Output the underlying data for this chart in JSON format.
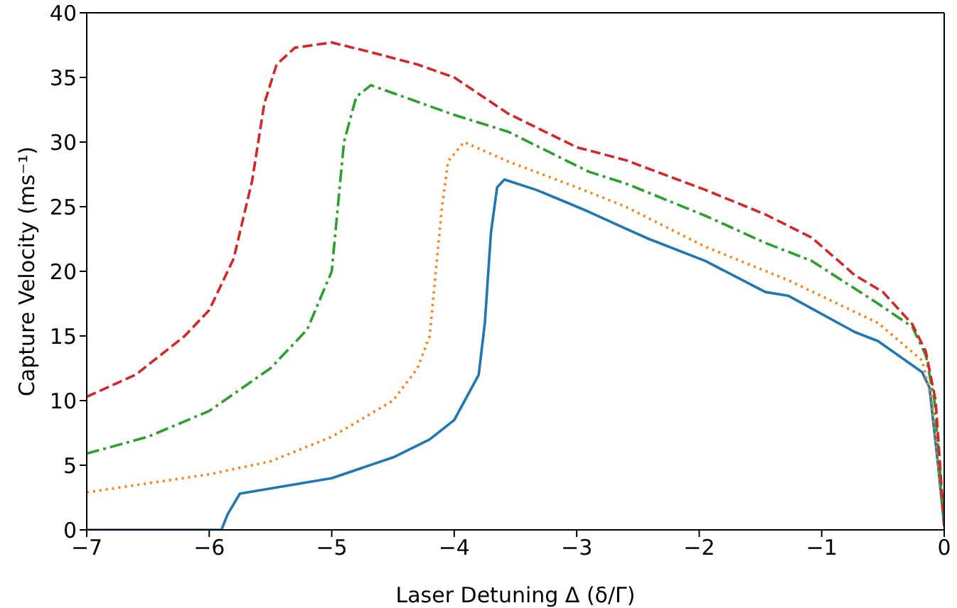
{
  "chart_data": {
    "type": "line",
    "xlabel": "Laser Detuning Δ (δ/Γ)",
    "ylabel": "Capture Velocity (ms⁻¹)",
    "xlim": [
      -7,
      0
    ],
    "ylim": [
      0,
      40
    ],
    "xticks": [
      {
        "value": -7,
        "label": "−7"
      },
      {
        "value": -6,
        "label": "−6"
      },
      {
        "value": -5,
        "label": "−5"
      },
      {
        "value": -4,
        "label": "−4"
      },
      {
        "value": -3,
        "label": "−3"
      },
      {
        "value": -2,
        "label": "−2"
      },
      {
        "value": -1,
        "label": "−1"
      },
      0
    ],
    "yticks": [
      0,
      5,
      10,
      15,
      20,
      25,
      30,
      35,
      40
    ],
    "grid": false,
    "legend": false,
    "marker": "none",
    "series": [
      {
        "color": "#1f77b4",
        "line_style": "solid",
        "x": [
          -7,
          -5.9,
          -5.85,
          -5.75,
          -5.5,
          -5,
          -4.5,
          -4.2,
          -4,
          -3.8,
          -3.75,
          -3.7,
          -3.65,
          -3.59,
          -3.33,
          -3.1,
          -2.9,
          -2.6,
          -2.41,
          -1.95,
          -1.46,
          -1.27,
          -0.73,
          -0.54,
          -0.18,
          -0.12,
          -0.05,
          0
        ],
        "values": [
          0,
          0,
          1.2,
          2.8,
          3.2,
          4,
          5.6,
          7,
          8.5,
          12,
          16,
          23,
          26.5,
          27.1,
          26.3,
          25.4,
          24.6,
          23.3,
          22.5,
          20.8,
          18.4,
          18.1,
          15.3,
          14.6,
          12.2,
          11,
          5,
          0.3
        ]
      },
      {
        "color": "#ff7f0e",
        "line_style": "dotted",
        "x": [
          -7,
          -6.5,
          -6,
          -5.5,
          -5,
          -4.5,
          -4.3,
          -4.2,
          -4.15,
          -4.1,
          -4.05,
          -3.92,
          -3.56,
          -3,
          -2.6,
          -1.95,
          -1.27,
          -0.54,
          -0.18,
          -0.1,
          0
        ],
        "values": [
          2.9,
          3.6,
          4.3,
          5.3,
          7.2,
          10,
          12.5,
          15,
          20,
          25,
          28.5,
          30,
          28.5,
          26.5,
          25,
          21.9,
          19.3,
          16,
          13.1,
          10,
          0.3
        ]
      },
      {
        "color": "#2ca02c",
        "line_style": "dashdot",
        "x": [
          -7,
          -6.5,
          -6,
          -5.5,
          -5.2,
          -5,
          -4.95,
          -4.9,
          -4.8,
          -4.68,
          -4,
          -3.56,
          -2.9,
          -2.6,
          -1.95,
          -1.46,
          -1.08,
          -0.54,
          -0.26,
          -0.15,
          -0.08,
          0
        ],
        "values": [
          5.9,
          7.2,
          9.2,
          12.5,
          15.5,
          20,
          25,
          30,
          33.5,
          34.4,
          32.1,
          30.8,
          27.7,
          26.8,
          24.3,
          22.2,
          20.8,
          17.5,
          15.7,
          13.5,
          10,
          0.3
        ]
      },
      {
        "color": "#d62728",
        "line_style": "dashed",
        "x": [
          -7,
          -6.6,
          -6.2,
          -6,
          -5.8,
          -5.65,
          -5.55,
          -5.45,
          -5.3,
          -5,
          -4.7,
          -4.3,
          -4,
          -3.56,
          -3,
          -2.6,
          -1.95,
          -1.46,
          -1.08,
          -0.73,
          -0.5,
          -0.26,
          -0.15,
          -0.07,
          0
        ],
        "values": [
          10.3,
          12,
          15,
          17,
          21,
          27,
          33,
          36,
          37.3,
          37.7,
          37,
          36,
          35,
          32.2,
          29.6,
          28.6,
          26.3,
          24.4,
          22.6,
          19.7,
          18.4,
          15.9,
          13.8,
          10,
          0.3
        ]
      }
    ]
  }
}
